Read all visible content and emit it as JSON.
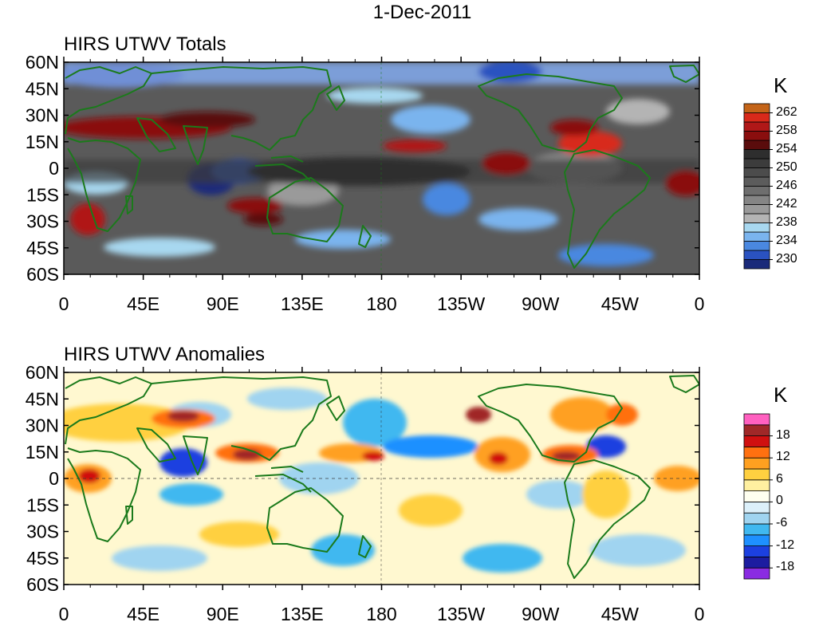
{
  "title": "1-Dec-2011",
  "colors": {
    "coastline": "#1b7a1b",
    "frame": "#000000"
  },
  "panels": [
    {
      "id": "totals",
      "title": "HIRS UTWV Totals",
      "lat_labels": [
        "60N",
        "45N",
        "30N",
        "15N",
        "0",
        "15S",
        "30S",
        "45S",
        "60S"
      ],
      "lon_labels": [
        "0",
        "45E",
        "90E",
        "135E",
        "180",
        "135W",
        "90W",
        "45W",
        "0"
      ],
      "colorbar": {
        "unit": "K",
        "colors": [
          "#1a2a7a",
          "#2a52c0",
          "#4a88e0",
          "#7ab4ee",
          "#a8d8f0",
          "#b4b4b4",
          "#9a9a9a",
          "#858585",
          "#6e6e6e",
          "#5c5c5c",
          "#4c4c4c",
          "#3c3c3c",
          "#2e2e2e",
          "#5a0c0c",
          "#8a0e0e",
          "#b01818",
          "#d82a1a",
          "#c46418"
        ],
        "labels": [
          "230",
          "234",
          "238",
          "242",
          "246",
          "250",
          "254",
          "258",
          "262"
        ]
      }
    },
    {
      "id": "anomalies",
      "title": "HIRS UTWV Anomalies",
      "lat_labels": [
        "60N",
        "45N",
        "30N",
        "15N",
        "0",
        "15S",
        "30S",
        "45S",
        "60S"
      ],
      "lon_labels": [
        "0",
        "45E",
        "90E",
        "135E",
        "180",
        "135W",
        "90W",
        "45W",
        "0"
      ],
      "colorbar": {
        "unit": "K",
        "colors": [
          "#8a2be2",
          "#1c1ca0",
          "#1c40e0",
          "#1e90ff",
          "#40b8f0",
          "#a0d4f0",
          "#dcf0fa",
          "#fffff0",
          "#fff0a0",
          "#ffd040",
          "#ffa020",
          "#ff7010",
          "#d01010",
          "#a02828",
          "#ff60c0"
        ],
        "labels": [
          "-18",
          "-12",
          "-6",
          "0",
          "6",
          "12",
          "18"
        ]
      }
    }
  ]
}
